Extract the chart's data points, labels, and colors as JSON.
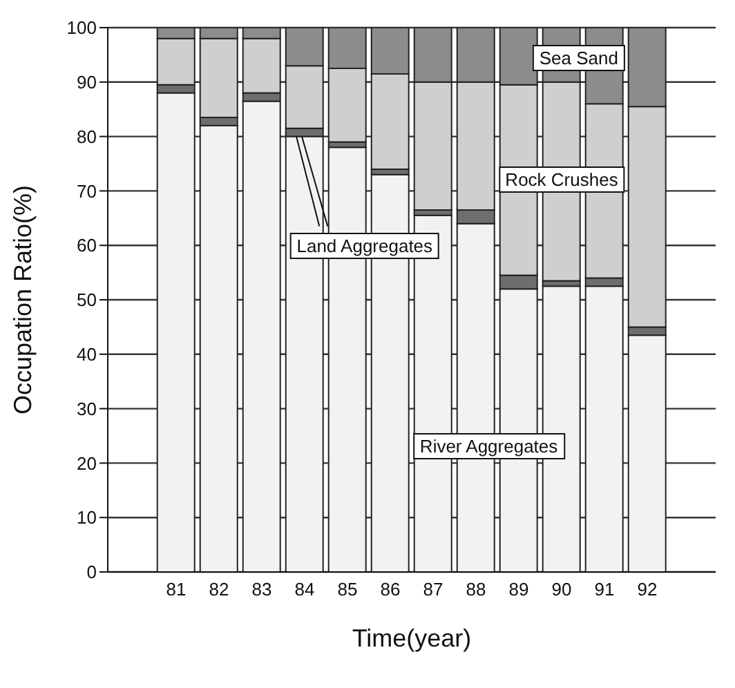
{
  "chart_data": {
    "type": "bar",
    "stacked": true,
    "xlabel": "Time(year)",
    "ylabel": "Occupation Ratio(%)",
    "categories": [
      "81",
      "82",
      "83",
      "84",
      "85",
      "86",
      "87",
      "88",
      "89",
      "90",
      "91",
      "92"
    ],
    "series": [
      {
        "name": "River Aggregates",
        "color": "#f2f2f2",
        "values": [
          88,
          82,
          86.5,
          80,
          78,
          73,
          65.5,
          64,
          52,
          52.5,
          52.5,
          43.5
        ]
      },
      {
        "name": "Land Aggregates",
        "color": "#6e6e6e",
        "values": [
          1.5,
          1.5,
          1.5,
          1.5,
          1,
          1,
          1,
          2.5,
          2.5,
          1,
          1.5,
          1.5
        ]
      },
      {
        "name": "Rock Crushes",
        "color": "#cfcfcf",
        "values": [
          8.5,
          14.5,
          10,
          11.5,
          13.5,
          17.5,
          23.5,
          23.5,
          35,
          36.5,
          32,
          40.5
        ]
      },
      {
        "name": "Sea Sand",
        "color": "#8c8c8c",
        "values": [
          2,
          2,
          2,
          7,
          7.5,
          8.5,
          10,
          10,
          10.5,
          10,
          14,
          14.5
        ]
      }
    ],
    "ylim": [
      0,
      100
    ],
    "yticks": [
      0,
      10,
      20,
      30,
      40,
      50,
      60,
      70,
      80,
      90,
      100
    ],
    "grid": "y"
  }
}
